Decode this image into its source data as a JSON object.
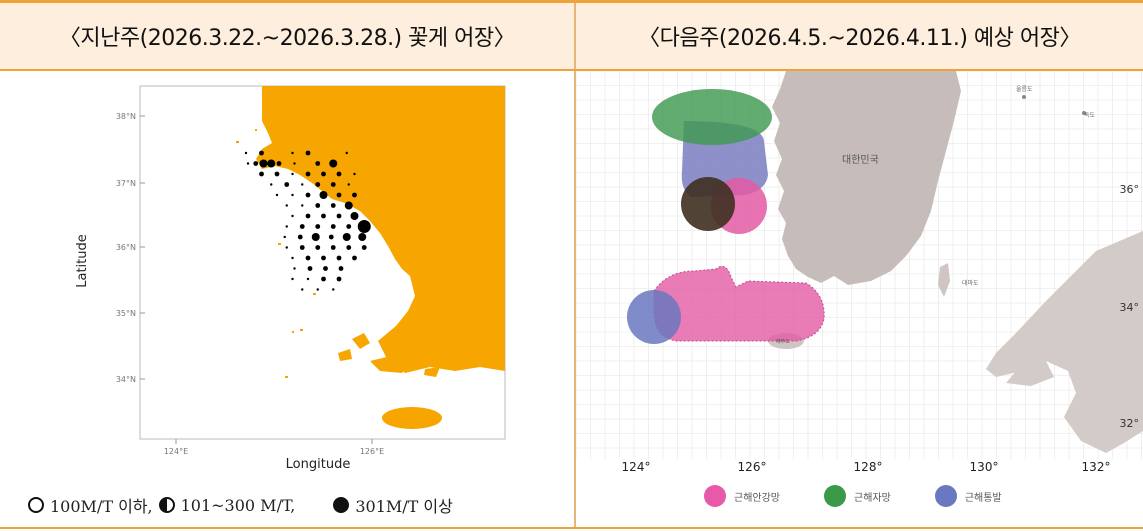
{
  "headers": {
    "left": "〈지난주(2026.3.22.~2026.3.28.) 꽃게 어장〉",
    "right": "〈다음주(2026.4.5.~2026.4.11.) 예상 어장〉"
  },
  "left_map": {
    "xlabel": "Longitude",
    "ylabel": "Latitude",
    "lat_ticks": [
      "38°N",
      "37°N",
      "36°N",
      "35°N",
      "34°N"
    ],
    "lon_ticks": [
      "124°E",
      "126°E"
    ],
    "colors": {
      "land": "#f7a500",
      "symbol": "#000000"
    }
  },
  "left_legend": {
    "small": "100M/T 이하,",
    "medium": "101~300 M/T,",
    "large": "301M/T 이상"
  },
  "right_map": {
    "country_label": "대한민국",
    "island_labels": {
      "ulleungdo": "울릉도",
      "dokdo": "독도",
      "daemado": "대마도",
      "jejudo": "제주도"
    },
    "lon_ticks": [
      "124°",
      "126°",
      "128°",
      "130°",
      "132°"
    ],
    "lat_ticks": [
      "36°",
      "34°",
      "32°"
    ],
    "colors": {
      "land": "#c8bfbc",
      "sea": "#ffffff",
      "pink": "#e85aa8",
      "green": "#3a9a4a",
      "blue": "#6a78c0",
      "brown": "#4a3520"
    }
  },
  "right_legend": {
    "items": [
      {
        "label": "근해안강망",
        "color": "#e85aa8"
      },
      {
        "label": "근해자망",
        "color": "#3a9a4a"
      },
      {
        "label": "근해통발",
        "color": "#6a78c0"
      }
    ]
  }
}
